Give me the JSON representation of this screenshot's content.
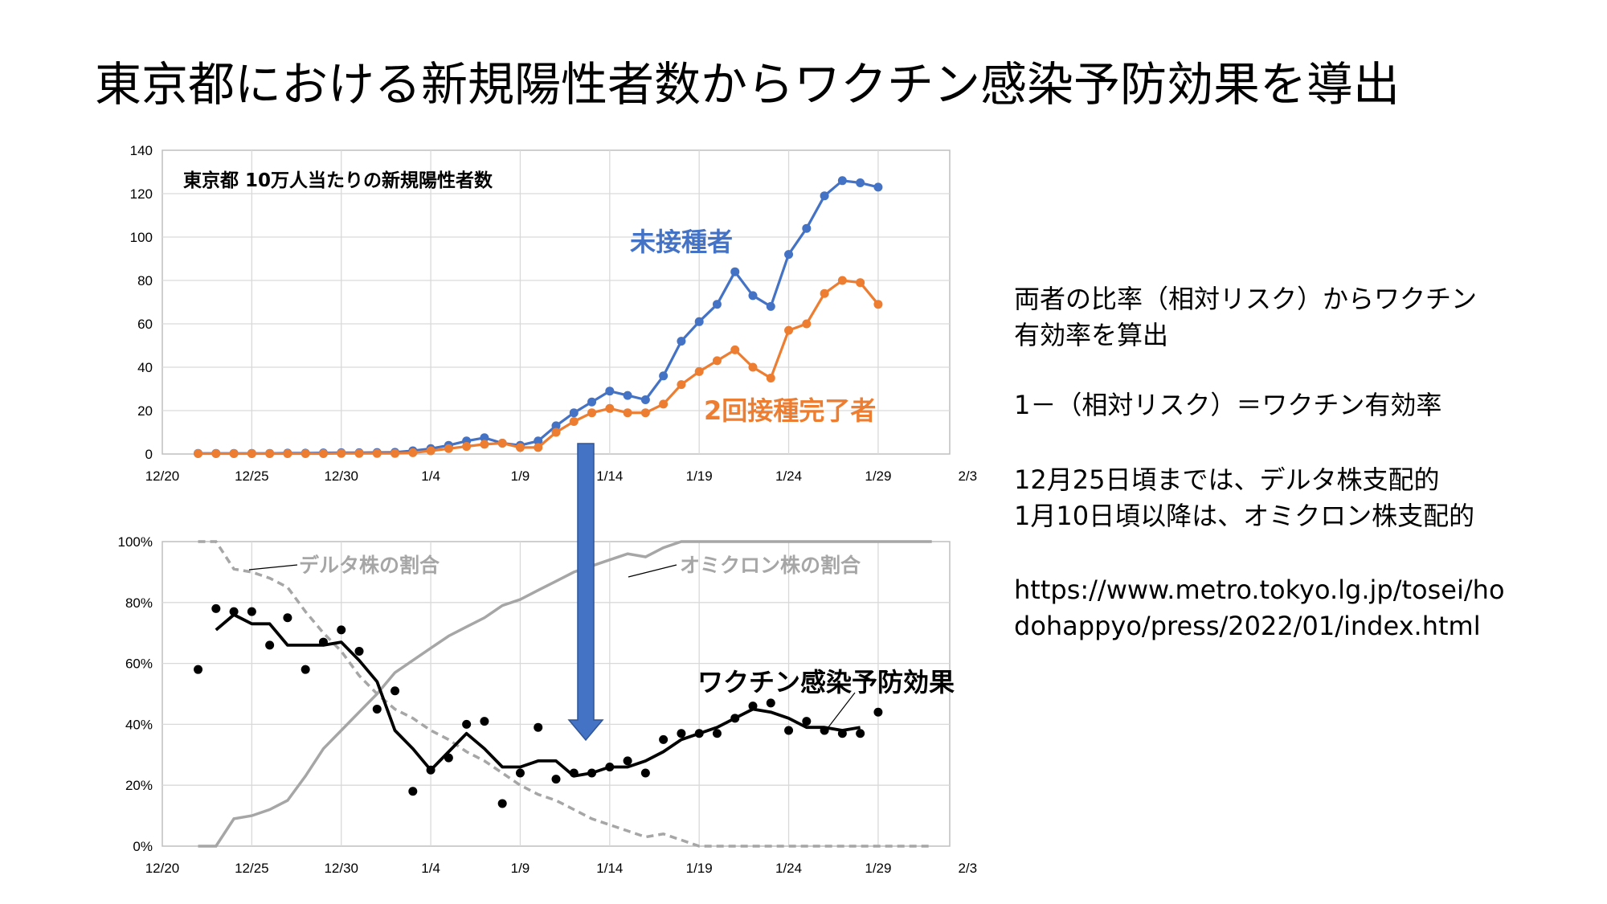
{
  "title": "東京都における新規陽性者数からワクチン感染予防効果を導出",
  "notes": {
    "line1": "両者の比率（相対リスク）からワクチン",
    "line2": "有効率を算出",
    "line3": "1－（相対リスク）＝ワクチン有効率",
    "line4": "12月25日頃までは、デルタ株支配的",
    "line5": "1月10日頃以降は、オミクロン株支配的",
    "line6": "https://www.metro.tokyo.lg.jp/tosei/ho",
    "line7": "dohappyo/press/2022/01/index.html"
  },
  "colors": {
    "unvaccinated": "#4472C4",
    "vaccinated": "#ED7D31",
    "variant_share": "#A6A6A6",
    "efficacy": "#000000",
    "arrow": "#4472C4"
  },
  "chart_data": [
    {
      "type": "line",
      "title": "東京都 10万人当たりの新規陽性者数",
      "xlabel": "",
      "ylabel": "",
      "x_ticks": [
        "12/20",
        "12/25",
        "12/30",
        "1/4",
        "1/9",
        "1/14",
        "1/19",
        "1/24",
        "1/29",
        "2/3"
      ],
      "x_day_range": [
        0,
        44
      ],
      "ylim": [
        0,
        140
      ],
      "y_ticks": [
        0,
        20,
        40,
        60,
        80,
        100,
        120,
        140
      ],
      "grid": true,
      "series": [
        {
          "name": "未接種者",
          "x": [
            "12/22",
            "12/23",
            "12/24",
            "12/25",
            "12/26",
            "12/27",
            "12/28",
            "12/29",
            "12/30",
            "12/31",
            "1/1",
            "1/2",
            "1/3",
            "1/4",
            "1/5",
            "1/6",
            "1/7",
            "1/8",
            "1/9",
            "1/10",
            "1/11",
            "1/12",
            "1/13",
            "1/14",
            "1/15",
            "1/16",
            "1/17",
            "1/18",
            "1/19",
            "1/20",
            "1/21",
            "1/22",
            "1/23",
            "1/24",
            "1/25",
            "1/26",
            "1/27",
            "1/28",
            "1/29"
          ],
          "values": [
            0.3,
            0.3,
            0.3,
            0.3,
            0.3,
            0.4,
            0.4,
            0.5,
            0.6,
            0.6,
            0.7,
            0.8,
            1.5,
            2.5,
            4,
            6,
            7.5,
            5,
            4,
            6,
            13,
            19,
            24,
            29,
            27,
            25,
            36,
            52,
            61,
            69,
            84,
            73,
            68,
            92,
            104,
            119,
            126,
            125,
            123
          ]
        },
        {
          "name": "2回接種完了者",
          "x": [
            "12/22",
            "12/23",
            "12/24",
            "12/25",
            "12/26",
            "12/27",
            "12/28",
            "12/29",
            "12/30",
            "12/31",
            "1/1",
            "1/2",
            "1/3",
            "1/4",
            "1/5",
            "1/6",
            "1/7",
            "1/8",
            "1/9",
            "1/10",
            "1/11",
            "1/12",
            "1/13",
            "1/14",
            "1/15",
            "1/16",
            "1/17",
            "1/18",
            "1/19",
            "1/20",
            "1/21",
            "1/22",
            "1/23",
            "1/24",
            "1/25",
            "1/26",
            "1/27",
            "1/28",
            "1/29"
          ],
          "values": [
            0.2,
            0.2,
            0.2,
            0.2,
            0.2,
            0.2,
            0.2,
            0.2,
            0.3,
            0.3,
            0.3,
            0.3,
            0.6,
            1.5,
            2.5,
            3.5,
            4.5,
            5,
            3,
            3,
            10,
            15,
            19,
            21,
            19,
            19,
            23,
            32,
            38,
            43,
            48,
            40,
            35,
            57,
            60,
            74,
            80,
            79,
            69
          ]
        }
      ]
    },
    {
      "type": "line",
      "title": "",
      "xlabel": "",
      "ylabel": "",
      "x_ticks": [
        "12/20",
        "12/25",
        "12/30",
        "1/4",
        "1/9",
        "1/14",
        "1/19",
        "1/24",
        "1/29",
        "2/3"
      ],
      "x_day_range": [
        0,
        44
      ],
      "ylim": [
        0,
        100
      ],
      "y_ticks": [
        "0%",
        "20%",
        "40%",
        "60%",
        "80%",
        "100%"
      ],
      "grid": true,
      "series": [
        {
          "name": "デルタ株の割合",
          "style": "dashed",
          "x": [
            "12/22",
            "12/23",
            "12/24",
            "12/25",
            "12/26",
            "12/27",
            "12/28",
            "12/29",
            "12/30",
            "12/31",
            "1/1",
            "1/2",
            "1/3",
            "1/4",
            "1/5",
            "1/6",
            "1/7",
            "1/8",
            "1/9",
            "1/10",
            "1/11",
            "1/12",
            "1/13",
            "1/14",
            "1/15",
            "1/16",
            "1/17",
            "1/18",
            "1/19",
            "1/20",
            "1/21",
            "1/22",
            "1/23",
            "1/24",
            "1/25",
            "1/26",
            "1/27",
            "1/28",
            "1/29",
            "1/30",
            "1/31",
            "2/1"
          ],
          "values": [
            100,
            100,
            91,
            90,
            88,
            85,
            77,
            70,
            64,
            56,
            50,
            45,
            42,
            38,
            35,
            31,
            28,
            24,
            20,
            17,
            15,
            12,
            9,
            7,
            5,
            3,
            4,
            2,
            0,
            0,
            0,
            0,
            0,
            0,
            0,
            0,
            0,
            0,
            0,
            0,
            0,
            0
          ]
        },
        {
          "name": "オミクロン株の割合",
          "style": "solid",
          "x": [
            "12/22",
            "12/23",
            "12/24",
            "12/25",
            "12/26",
            "12/27",
            "12/28",
            "12/29",
            "12/30",
            "12/31",
            "1/1",
            "1/2",
            "1/3",
            "1/4",
            "1/5",
            "1/6",
            "1/7",
            "1/8",
            "1/9",
            "1/10",
            "1/11",
            "1/12",
            "1/13",
            "1/14",
            "1/15",
            "1/16",
            "1/17",
            "1/18",
            "1/19",
            "1/20",
            "1/21",
            "1/22",
            "1/23",
            "1/24",
            "1/25",
            "1/26",
            "1/27",
            "1/28",
            "1/29",
            "1/30",
            "1/31",
            "2/1"
          ],
          "values": [
            0,
            0,
            9,
            10,
            12,
            15,
            23,
            32,
            38,
            44,
            50,
            57,
            61,
            65,
            69,
            72,
            75,
            79,
            81,
            84,
            87,
            90,
            92,
            94,
            96,
            95,
            98,
            100,
            100,
            100,
            100,
            100,
            100,
            100,
            100,
            100,
            100,
            100,
            100,
            100,
            100,
            100
          ]
        },
        {
          "name": "ワクチン感染予防効果",
          "style": "points",
          "x": [
            "12/22",
            "12/23",
            "12/24",
            "12/25",
            "12/26",
            "12/27",
            "12/28",
            "12/29",
            "12/30",
            "12/31",
            "1/1",
            "1/2",
            "1/3",
            "1/4",
            "1/5",
            "1/6",
            "1/7",
            "1/8",
            "1/9",
            "1/10",
            "1/11",
            "1/12",
            "1/13",
            "1/14",
            "1/15",
            "1/16",
            "1/17",
            "1/18",
            "1/19",
            "1/20",
            "1/21",
            "1/22",
            "1/23",
            "1/24",
            "1/25",
            "1/26",
            "1/27",
            "1/28",
            "1/29"
          ],
          "values": [
            58,
            78,
            77,
            77,
            66,
            75,
            58,
            67,
            71,
            64,
            45,
            51,
            18,
            25,
            29,
            40,
            41,
            14,
            24,
            39,
            22,
            24,
            24,
            26,
            28,
            24,
            35,
            37,
            37,
            37,
            42,
            46,
            47,
            38,
            41,
            38,
            37,
            37,
            44
          ]
        },
        {
          "name": "",
          "style": "moving-average",
          "x": [
            "12/23",
            "12/24",
            "12/25",
            "12/26",
            "12/27",
            "12/28",
            "12/29",
            "12/30",
            "12/31",
            "1/1",
            "1/2",
            "1/3",
            "1/4",
            "1/5",
            "1/6",
            "1/7",
            "1/8",
            "1/9",
            "1/10",
            "1/11",
            "1/12",
            "1/13",
            "1/14",
            "1/15",
            "1/16",
            "1/17",
            "1/18",
            "1/19",
            "1/20",
            "1/21",
            "1/22",
            "1/23",
            "1/24",
            "1/25",
            "1/26",
            "1/27",
            "1/28"
          ],
          "values": [
            71,
            76,
            73,
            73,
            66,
            66,
            66,
            67,
            61,
            54,
            38,
            32,
            25,
            31,
            37,
            32,
            26,
            26,
            28,
            28,
            23,
            24,
            26,
            26,
            28,
            31,
            35,
            37,
            39,
            42,
            45,
            44,
            42,
            39,
            39,
            38,
            39
          ]
        }
      ],
      "annotations": [
        {
          "text": "デルタ株の割合",
          "target": "デルタ株の割合"
        },
        {
          "text": "オミクロン株の割合",
          "target": "オミクロン株の割合"
        },
        {
          "text": "ワクチン感染予防効果",
          "target": "ワクチン感染予防効果"
        }
      ]
    }
  ]
}
